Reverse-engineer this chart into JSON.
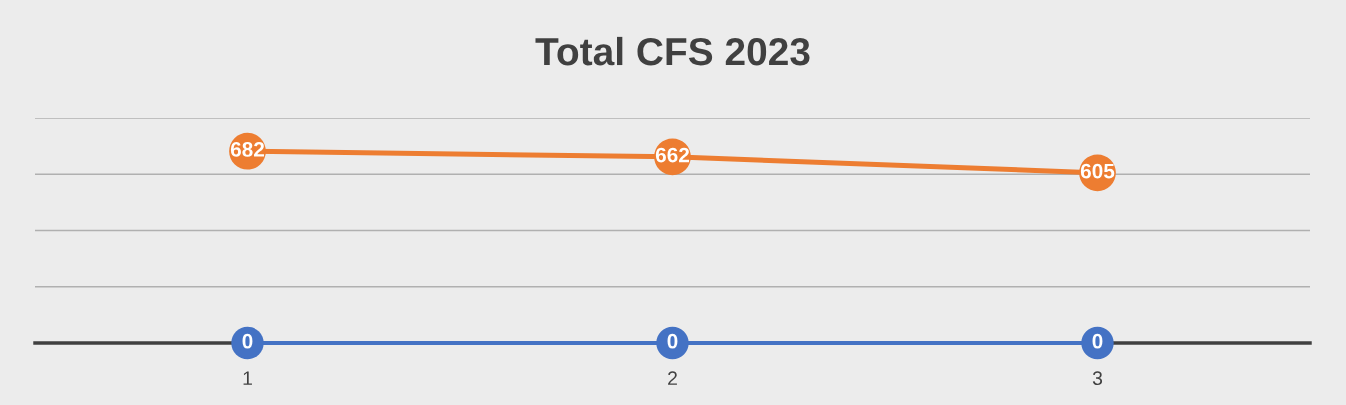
{
  "chart_data": {
    "type": "line",
    "title": "Total CFS 2023",
    "categories": [
      "1",
      "2",
      "3"
    ],
    "series": [
      {
        "color": "#ed7d31",
        "values": [
          682,
          662,
          605
        ]
      },
      {
        "color": "#4472c4",
        "values": [
          0,
          0,
          0
        ]
      }
    ],
    "tick_labels": "x",
    "grid": "y",
    "marker": "circle",
    "line_style": "solid",
    "data_labels": true
  }
}
